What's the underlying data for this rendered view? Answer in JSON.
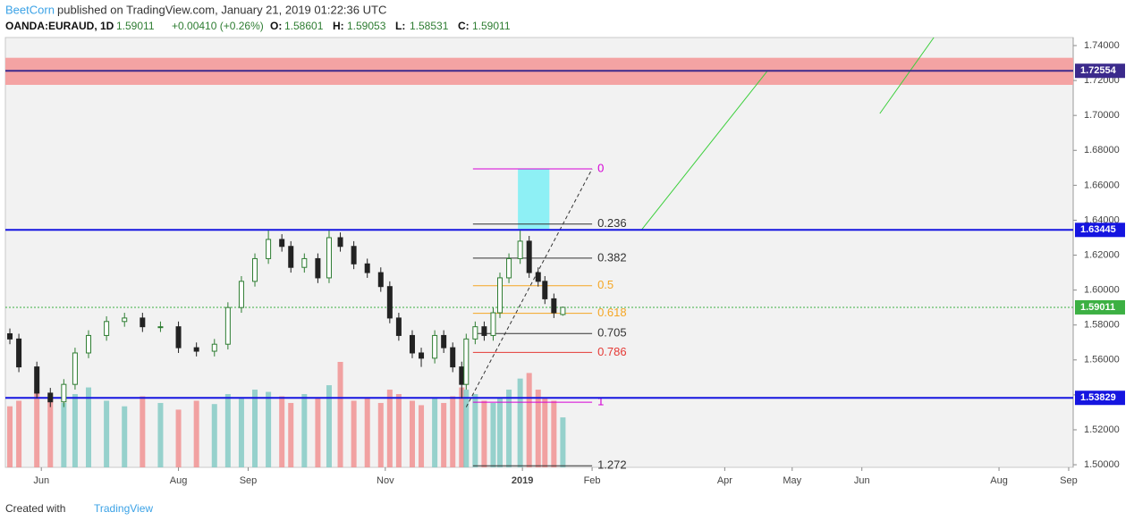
{
  "header": {
    "author": "BeetCorn",
    "published": "published on TradingView.com, January 21, 2019 01:22:36 UTC",
    "symbol": "OANDA:EURAUD, 1D",
    "last": "1.59011",
    "change": "+0.00410 (+0.26%)",
    "quotes": [
      {
        "label": "O:",
        "value": "1.58601"
      },
      {
        "label": "H:",
        "value": "1.59053"
      },
      {
        "label": "L:",
        "value": "1.58531"
      },
      {
        "label": "C:",
        "value": "1.59011"
      }
    ]
  },
  "footer": {
    "created": "Created with",
    "brand": "TradingView"
  },
  "chart_data": {
    "type": "candlestick",
    "x": [
      2,
      6,
      14,
      20,
      26,
      31,
      37,
      45,
      53,
      61,
      69,
      77,
      85,
      93,
      99,
      105,
      111,
      117,
      123,
      127,
      133,
      139,
      144,
      149,
      155,
      161,
      167,
      171,
      175,
      181,
      185,
      191,
      195,
      199,
      203,
      205,
      209,
      213,
      217,
      220,
      224,
      229,
      233,
      237,
      240,
      244,
      248
    ],
    "open": [
      1.575,
      1.572,
      1.556,
      1.541,
      1.536,
      1.546,
      1.564,
      1.574,
      1.582,
      1.584,
      1.579,
      1.579,
      1.567,
      1.565,
      1.569,
      1.59,
      1.605,
      1.618,
      1.629,
      1.625,
      1.613,
      1.618,
      1.607,
      1.63,
      1.625,
      1.615,
      1.61,
      1.602,
      1.584,
      1.574,
      1.564,
      1.561,
      1.574,
      1.567,
      1.556,
      1.546,
      1.572,
      1.579,
      1.574,
      1.587,
      1.607,
      1.618,
      1.628,
      1.61,
      1.605,
      1.595,
      1.58601
    ],
    "high": [
      1.578,
      1.575,
      1.559,
      1.544,
      1.549,
      1.567,
      1.577,
      1.585,
      1.587,
      1.587,
      1.582,
      1.582,
      1.57,
      1.572,
      1.593,
      1.608,
      1.621,
      1.634,
      1.632,
      1.628,
      1.621,
      1.621,
      1.634,
      1.633,
      1.628,
      1.618,
      1.613,
      1.605,
      1.587,
      1.577,
      1.567,
      1.577,
      1.577,
      1.57,
      1.559,
      1.575,
      1.582,
      1.582,
      1.59,
      1.61,
      1.621,
      1.634,
      1.631,
      1.613,
      1.608,
      1.598,
      1.59053
    ],
    "low": [
      1.569,
      1.553,
      1.538,
      1.533,
      1.533,
      1.543,
      1.561,
      1.571,
      1.579,
      1.576,
      1.576,
      1.564,
      1.562,
      1.562,
      1.566,
      1.587,
      1.602,
      1.615,
      1.622,
      1.61,
      1.61,
      1.604,
      1.604,
      1.622,
      1.612,
      1.607,
      1.599,
      1.581,
      1.571,
      1.561,
      1.556,
      1.558,
      1.564,
      1.553,
      1.538,
      1.543,
      1.569,
      1.571,
      1.571,
      1.584,
      1.604,
      1.615,
      1.607,
      1.602,
      1.592,
      1.584,
      1.58531
    ],
    "close": [
      1.572,
      1.556,
      1.541,
      1.536,
      1.546,
      1.564,
      1.574,
      1.582,
      1.584,
      1.579,
      1.579,
      1.567,
      1.565,
      1.569,
      1.59,
      1.605,
      1.618,
      1.629,
      1.625,
      1.613,
      1.618,
      1.607,
      1.63,
      1.625,
      1.615,
      1.61,
      1.602,
      1.584,
      1.574,
      1.564,
      1.561,
      1.574,
      1.567,
      1.556,
      1.546,
      1.572,
      1.579,
      1.574,
      1.587,
      1.607,
      1.618,
      1.628,
      1.61,
      1.605,
      1.595,
      1.587,
      1.59011
    ],
    "volume": [
      55,
      60,
      70,
      62,
      58,
      66,
      72,
      60,
      55,
      64,
      58,
      52,
      60,
      57,
      66,
      62,
      70,
      68,
      64,
      58,
      66,
      62,
      74,
      95,
      60,
      62,
      58,
      70,
      66,
      60,
      56,
      62,
      58,
      64,
      72,
      70,
      66,
      60,
      58,
      62,
      70,
      80,
      85,
      70,
      62,
      60,
      45
    ],
    "up_color": "#2e7d32",
    "down_color": "#222222",
    "volume_up_color": "#7ec8c2",
    "volume_down_color": "#f08c8c",
    "xlim": [
      0,
      475
    ],
    "xticks": [
      {
        "value": 16,
        "label": "Jun"
      },
      {
        "value": 77,
        "label": "Aug"
      },
      {
        "value": 108,
        "label": "Sep"
      },
      {
        "value": 169,
        "label": "Nov"
      },
      {
        "value": 230,
        "label": "2019"
      },
      {
        "value": 261,
        "label": "Feb"
      },
      {
        "value": 320,
        "label": "Apr"
      },
      {
        "value": 350,
        "label": "May"
      },
      {
        "value": 381,
        "label": "Jun"
      },
      {
        "value": 442,
        "label": "Aug"
      },
      {
        "value": 473,
        "label": "Sep"
      }
    ],
    "ylim": [
      1.4985,
      1.7446
    ],
    "yticks": [
      {
        "value": 1.5,
        "label": "1.50000"
      },
      {
        "value": 1.52,
        "label": "1.52000"
      },
      {
        "value": 1.54,
        "label": "1.54000"
      },
      {
        "value": 1.56,
        "label": "1.56000"
      },
      {
        "value": 1.58,
        "label": "1.58000"
      },
      {
        "value": 1.6,
        "label": "1.60000"
      },
      {
        "value": 1.62,
        "label": "1.62000"
      },
      {
        "value": 1.64,
        "label": "1.64000"
      },
      {
        "value": 1.66,
        "label": "1.66000"
      },
      {
        "value": 1.68,
        "label": "1.68000"
      },
      {
        "value": 1.7,
        "label": "1.70000"
      },
      {
        "value": 1.72,
        "label": "1.72000"
      },
      {
        "value": 1.74,
        "label": "1.74000"
      }
    ],
    "zone": {
      "top": 1.733,
      "bottom": 1.7175,
      "color": "#f4a3a3"
    },
    "levels": [
      {
        "price": 1.72554,
        "color": "#3b2a8c"
      },
      {
        "price": 1.63445,
        "color": "#1515e0"
      },
      {
        "price": 1.53829,
        "color": "#1515e0"
      },
      {
        "price": 1.59011,
        "color": "#3cb043"
      }
    ],
    "fib": {
      "x": [
        208,
        261
      ],
      "levels": [
        {
          "level": 0,
          "price": 1.6694,
          "color": "#d500d5"
        },
        {
          "level": 0.236,
          "price": 1.6378,
          "color": "#333333"
        },
        {
          "level": 0.382,
          "price": 1.6183,
          "color": "#333333"
        },
        {
          "level": 0.5,
          "price": 1.6025,
          "color": "#f5a623"
        },
        {
          "level": 0.618,
          "price": 1.5867,
          "color": "#f5a623"
        },
        {
          "level": 0.705,
          "price": 1.5751,
          "color": "#333333"
        },
        {
          "level": 0.786,
          "price": 1.5643,
          "color": "#e53935"
        },
        {
          "level": 1,
          "price": 1.5358,
          "color": "#d500d5"
        },
        {
          "level": 1.272,
          "price": 1.4994,
          "color": "#333333"
        }
      ]
    },
    "box": {
      "x": [
        228,
        242
      ],
      "y": [
        1.635,
        1.6694
      ],
      "color": "#8ef0f5"
    },
    "trendlines": [
      {
        "x": [
          283,
          339
        ],
        "y": [
          1.6345,
          1.7255
        ],
        "color": "#3ccf3c",
        "dash": false
      },
      {
        "x": [
          389,
          413
        ],
        "y": [
          1.7011,
          1.7446
        ],
        "color": "#3ccf3c",
        "dash": false
      },
      {
        "x": [
          205,
          261
        ],
        "y": [
          1.533,
          1.6694
        ],
        "color": "#333333",
        "dash": true
      }
    ]
  }
}
